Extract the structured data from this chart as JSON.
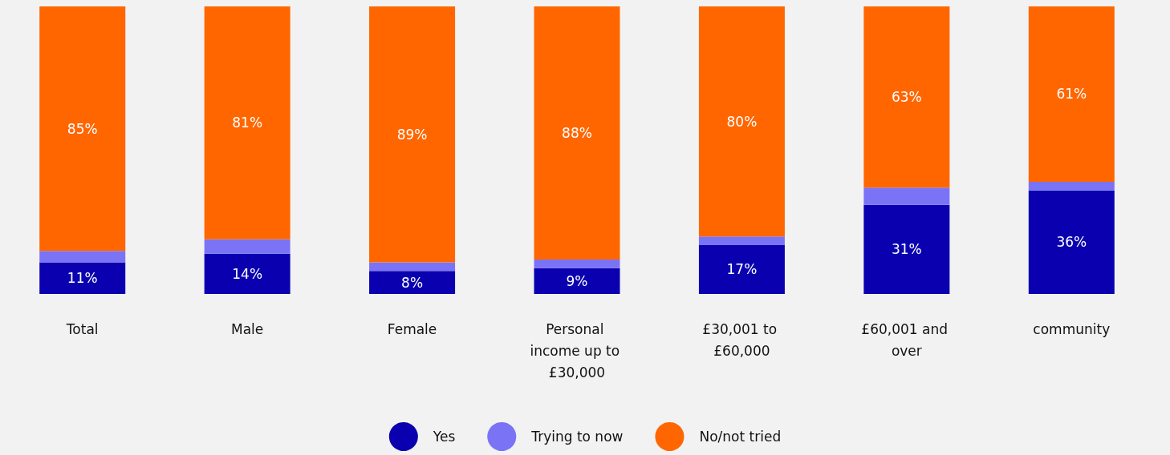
{
  "chart_data": {
    "type": "bar",
    "stacked": true,
    "legend": "bottom",
    "categories": [
      "Total",
      "Male",
      "Female",
      "Personal income up to £30,000",
      "£30,001 to £60,000",
      "£60,001 and over",
      "community"
    ],
    "series": [
      {
        "name": "Yes",
        "color": "#0a00b0",
        "values": [
          11,
          14,
          8,
          9,
          17,
          31,
          36
        ],
        "value_labels": [
          "11%",
          "14%",
          "8%",
          "9%",
          "17%",
          "31%",
          "36%"
        ]
      },
      {
        "name": "Trying to now",
        "color": "#7b73f5",
        "values": [
          4,
          5,
          3,
          3,
          3,
          6,
          3
        ]
      },
      {
        "name": "No/not tried",
        "color": "#ff6600",
        "values": [
          85,
          81,
          89,
          88,
          80,
          63,
          61
        ],
        "value_labels": [
          "85%",
          "81%",
          "89%",
          "88%",
          "80%",
          "63%",
          "61%"
        ]
      }
    ]
  }
}
